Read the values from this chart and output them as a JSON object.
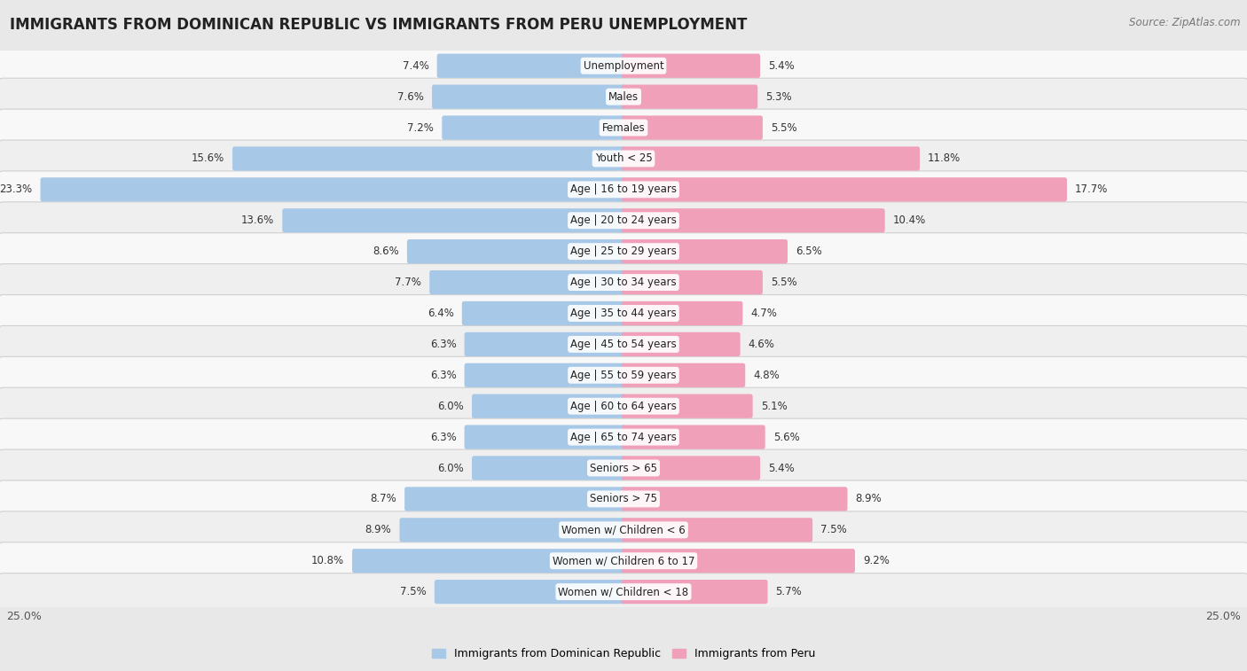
{
  "title": "IMMIGRANTS FROM DOMINICAN REPUBLIC VS IMMIGRANTS FROM PERU UNEMPLOYMENT",
  "source": "Source: ZipAtlas.com",
  "categories": [
    "Unemployment",
    "Males",
    "Females",
    "Youth < 25",
    "Age | 16 to 19 years",
    "Age | 20 to 24 years",
    "Age | 25 to 29 years",
    "Age | 30 to 34 years",
    "Age | 35 to 44 years",
    "Age | 45 to 54 years",
    "Age | 55 to 59 years",
    "Age | 60 to 64 years",
    "Age | 65 to 74 years",
    "Seniors > 65",
    "Seniors > 75",
    "Women w/ Children < 6",
    "Women w/ Children 6 to 17",
    "Women w/ Children < 18"
  ],
  "left_values": [
    7.4,
    7.6,
    7.2,
    15.6,
    23.3,
    13.6,
    8.6,
    7.7,
    6.4,
    6.3,
    6.3,
    6.0,
    6.3,
    6.0,
    8.7,
    8.9,
    10.8,
    7.5
  ],
  "right_values": [
    5.4,
    5.3,
    5.5,
    11.8,
    17.7,
    10.4,
    6.5,
    5.5,
    4.7,
    4.6,
    4.8,
    5.1,
    5.6,
    5.4,
    8.9,
    7.5,
    9.2,
    5.7
  ],
  "left_color": "#a8c8e8",
  "right_color": "#f0a0b8",
  "left_label": "Immigrants from Dominican Republic",
  "right_label": "Immigrants from Peru",
  "max_val": 25.0,
  "bg_color": "#e8e8e8",
  "row_bg_even": "#f8f8f8",
  "row_bg_odd": "#efefef",
  "title_fontsize": 12,
  "source_fontsize": 8.5,
  "cat_fontsize": 8.5,
  "value_fontsize": 8.5,
  "legend_fontsize": 9,
  "axis_fontsize": 9
}
